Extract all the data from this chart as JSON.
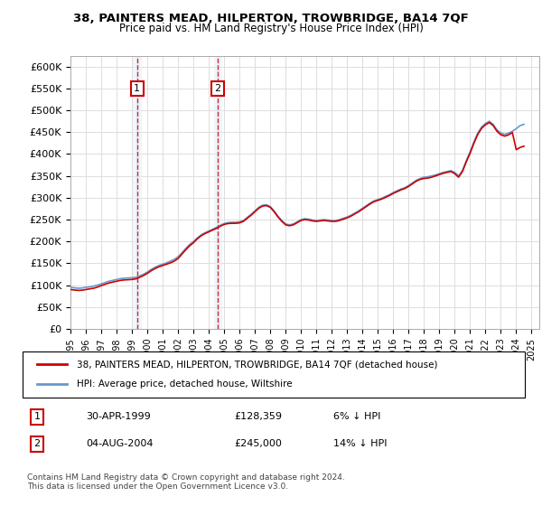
{
  "title": "38, PAINTERS MEAD, HILPERTON, TROWBRIDGE, BA14 7QF",
  "subtitle": "Price paid vs. HM Land Registry's House Price Index (HPI)",
  "legend_line1": "38, PAINTERS MEAD, HILPERTON, TROWBRIDGE, BA14 7QF (detached house)",
  "legend_line2": "HPI: Average price, detached house, Wiltshire",
  "footer": "Contains HM Land Registry data © Crown copyright and database right 2024.\nThis data is licensed under the Open Government Licence v3.0.",
  "table_rows": [
    [
      "1",
      "30-APR-1999",
      "£128,359",
      "6% ↓ HPI"
    ],
    [
      "2",
      "04-AUG-2004",
      "£245,000",
      "14% ↓ HPI"
    ]
  ],
  "vline_years": [
    1999.33,
    2004.58
  ],
  "vline_labels": [
    "1",
    "2"
  ],
  "property_color": "#cc0000",
  "hpi_color": "#6699cc",
  "ylim": [
    0,
    625000
  ],
  "xlim_start": 1995.0,
  "xlim_end": 2025.5,
  "hpi_data": {
    "years": [
      1995.0,
      1995.25,
      1995.5,
      1995.75,
      1996.0,
      1996.25,
      1996.5,
      1996.75,
      1997.0,
      1997.25,
      1997.5,
      1997.75,
      1998.0,
      1998.25,
      1998.5,
      1998.75,
      1999.0,
      1999.25,
      1999.5,
      1999.75,
      2000.0,
      2000.25,
      2000.5,
      2000.75,
      2001.0,
      2001.25,
      2001.5,
      2001.75,
      2002.0,
      2002.25,
      2002.5,
      2002.75,
      2003.0,
      2003.25,
      2003.5,
      2003.75,
      2004.0,
      2004.25,
      2004.5,
      2004.75,
      2005.0,
      2005.25,
      2005.5,
      2005.75,
      2006.0,
      2006.25,
      2006.5,
      2006.75,
      2007.0,
      2007.25,
      2007.5,
      2007.75,
      2008.0,
      2008.25,
      2008.5,
      2008.75,
      2009.0,
      2009.25,
      2009.5,
      2009.75,
      2010.0,
      2010.25,
      2010.5,
      2010.75,
      2011.0,
      2011.25,
      2011.5,
      2011.75,
      2012.0,
      2012.25,
      2012.5,
      2012.75,
      2013.0,
      2013.25,
      2013.5,
      2013.75,
      2014.0,
      2014.25,
      2014.5,
      2014.75,
      2015.0,
      2015.25,
      2015.5,
      2015.75,
      2016.0,
      2016.25,
      2016.5,
      2016.75,
      2017.0,
      2017.25,
      2017.5,
      2017.75,
      2018.0,
      2018.25,
      2018.5,
      2018.75,
      2019.0,
      2019.25,
      2019.5,
      2019.75,
      2020.0,
      2020.25,
      2020.5,
      2020.75,
      2021.0,
      2021.25,
      2021.5,
      2021.75,
      2022.0,
      2022.25,
      2022.5,
      2022.75,
      2023.0,
      2023.25,
      2023.5,
      2023.75,
      2024.0,
      2024.25,
      2024.5
    ],
    "values": [
      95000,
      94000,
      93000,
      93500,
      95000,
      96000,
      98000,
      100000,
      103000,
      106000,
      109000,
      111000,
      113000,
      115000,
      116000,
      116500,
      117000,
      118000,
      121000,
      125000,
      130000,
      136000,
      141000,
      145000,
      148000,
      151000,
      155000,
      159000,
      165000,
      174000,
      184000,
      193000,
      200000,
      208000,
      215000,
      220000,
      224000,
      228000,
      232000,
      237000,
      241000,
      243000,
      244000,
      244000,
      245000,
      248000,
      255000,
      262000,
      270000,
      278000,
      283000,
      284000,
      280000,
      270000,
      258000,
      248000,
      240000,
      238000,
      240000,
      245000,
      250000,
      252000,
      251000,
      249000,
      248000,
      249000,
      250000,
      249000,
      248000,
      248000,
      250000,
      253000,
      256000,
      260000,
      265000,
      270000,
      276000,
      282000,
      288000,
      293000,
      296000,
      299000,
      303000,
      307000,
      312000,
      316000,
      320000,
      323000,
      328000,
      334000,
      340000,
      344000,
      347000,
      348000,
      350000,
      352000,
      355000,
      358000,
      360000,
      362000,
      358000,
      350000,
      362000,
      385000,
      405000,
      428000,
      448000,
      462000,
      470000,
      475000,
      468000,
      455000,
      448000,
      445000,
      448000,
      452000,
      458000,
      465000,
      468000
    ]
  },
  "property_data": {
    "years": [
      1995.0,
      1995.25,
      1995.5,
      1995.75,
      1996.0,
      1996.25,
      1996.5,
      1996.75,
      1997.0,
      1997.25,
      1997.5,
      1997.75,
      1998.0,
      1998.25,
      1998.5,
      1998.75,
      1999.0,
      1999.25,
      1999.5,
      1999.75,
      2000.0,
      2000.25,
      2000.5,
      2000.75,
      2001.0,
      2001.25,
      2001.5,
      2001.75,
      2002.0,
      2002.25,
      2002.5,
      2002.75,
      2003.0,
      2003.25,
      2003.5,
      2003.75,
      2004.0,
      2004.25,
      2004.5,
      2004.75,
      2005.0,
      2005.25,
      2005.5,
      2005.75,
      2006.0,
      2006.25,
      2006.5,
      2006.75,
      2007.0,
      2007.25,
      2007.5,
      2007.75,
      2008.0,
      2008.25,
      2008.5,
      2008.75,
      2009.0,
      2009.25,
      2009.5,
      2009.75,
      2010.0,
      2010.25,
      2010.5,
      2010.75,
      2011.0,
      2011.25,
      2011.5,
      2011.75,
      2012.0,
      2012.25,
      2012.5,
      2012.75,
      2013.0,
      2013.25,
      2013.5,
      2013.75,
      2014.0,
      2014.25,
      2014.5,
      2014.75,
      2015.0,
      2015.25,
      2015.5,
      2015.75,
      2016.0,
      2016.25,
      2016.5,
      2016.75,
      2017.0,
      2017.25,
      2017.5,
      2017.75,
      2018.0,
      2018.25,
      2018.5,
      2018.75,
      2019.0,
      2019.25,
      2019.5,
      2019.75,
      2020.0,
      2020.25,
      2020.5,
      2020.75,
      2021.0,
      2021.25,
      2021.5,
      2021.75,
      2022.0,
      2022.25,
      2022.5,
      2022.75,
      2023.0,
      2023.25,
      2023.5,
      2023.75,
      2024.0,
      2024.25,
      2024.5
    ],
    "values": [
      90000,
      89000,
      88000,
      88500,
      90000,
      91500,
      93000,
      95500,
      99000,
      102000,
      105000,
      107000,
      109000,
      111000,
      112000,
      112500,
      113000,
      114500,
      118000,
      122000,
      127000,
      133000,
      138000,
      142000,
      145000,
      148000,
      151000,
      155000,
      161000,
      171000,
      181000,
      190000,
      197000,
      206000,
      213000,
      218000,
      222000,
      226000,
      230000,
      235000,
      239000,
      241000,
      241500,
      241500,
      242500,
      246000,
      253000,
      260000,
      268000,
      276000,
      281000,
      282000,
      278000,
      268000,
      256000,
      246000,
      238000,
      236000,
      238000,
      243000,
      248000,
      250000,
      249000,
      247000,
      246000,
      247000,
      248000,
      247000,
      246000,
      246000,
      248000,
      251000,
      254000,
      258000,
      263000,
      268000,
      274000,
      280000,
      286000,
      291000,
      294000,
      297000,
      301000,
      305000,
      310000,
      314000,
      318000,
      321000,
      326000,
      332000,
      338000,
      342000,
      344000,
      345000,
      347000,
      350000,
      353000,
      356000,
      358000,
      360000,
      355000,
      347000,
      360000,
      382000,
      402000,
      425000,
      445000,
      459000,
      467000,
      472000,
      465000,
      452000,
      444000,
      441000,
      444000,
      449000,
      410000,
      415000,
      418000
    ]
  }
}
